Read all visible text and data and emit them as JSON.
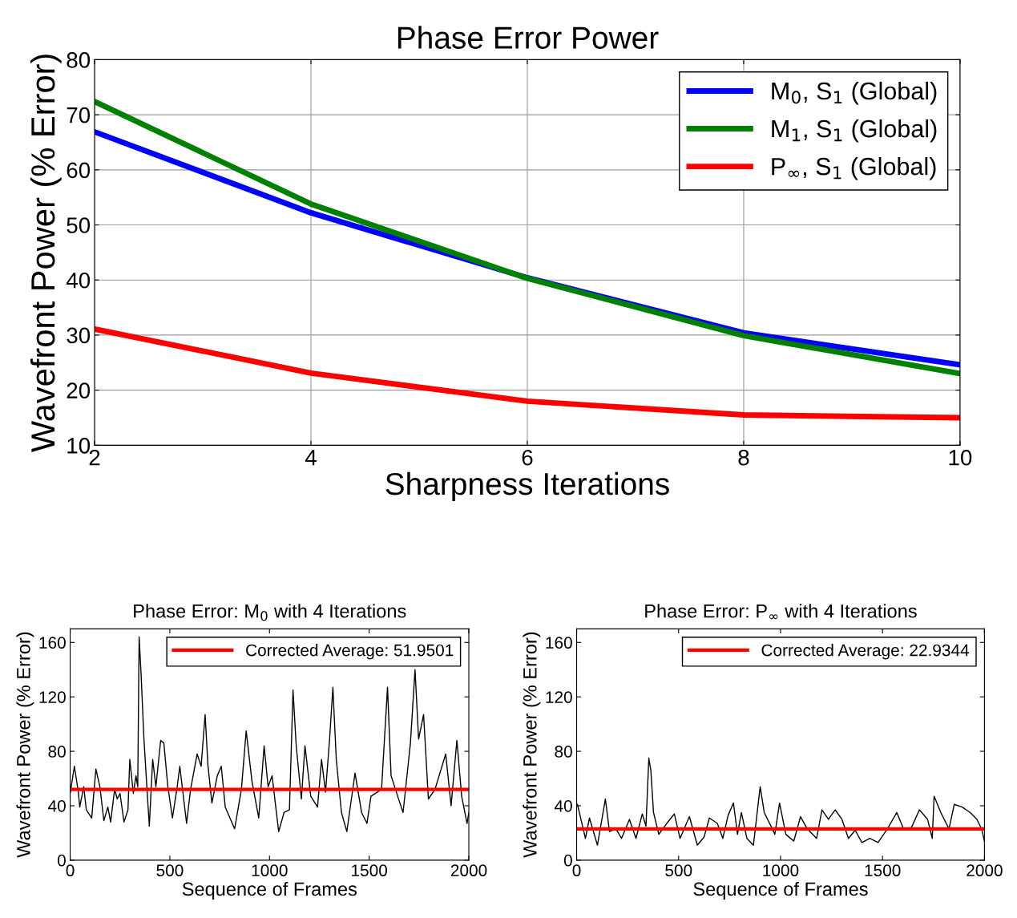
{
  "chart_data": [
    {
      "type": "line",
      "title": "Phase Error Power",
      "xlabel": "Sharpness Iterations",
      "ylabel": "Wavefront Power (% Error)",
      "x": [
        2,
        4,
        6,
        8,
        10
      ],
      "xlim": [
        2,
        10
      ],
      "xticks": [
        2,
        4,
        6,
        8,
        10
      ],
      "ylim": [
        10,
        80
      ],
      "yticks": [
        10,
        20,
        30,
        40,
        50,
        60,
        70,
        80
      ],
      "grid": true,
      "legend": "top right",
      "series": [
        {
          "name": "M$_{0}$, S$_{1}$ (Global)",
          "color": "#0000ff",
          "values": [
            66.9,
            52.2,
            40.4,
            30.4,
            24.6
          ]
        },
        {
          "name": "M$_{1}$, S$_{1}$ (Global)",
          "color": "#008000",
          "values": [
            72.4,
            53.8,
            40.3,
            29.9,
            23.0
          ]
        },
        {
          "name": "P$_{∞}$, S$_{1}$ (Global)",
          "color": "#ff0000",
          "values": [
            31.1,
            23.1,
            18.0,
            15.5,
            15.0
          ]
        }
      ]
    },
    {
      "type": "line",
      "title": "Phase Error: M$_{0}$ with 4 Iterations",
      "xlabel": "Sequence of Frames",
      "ylabel": "Wavefront Power (% Error)",
      "xlim": [
        0,
        2000
      ],
      "xticks": [
        0,
        500,
        1000,
        1500,
        2000
      ],
      "ylim": [
        0,
        170
      ],
      "yticks": [
        0,
        40,
        80,
        120,
        160
      ],
      "grid": false,
      "legend": "top right",
      "ref_lines": [
        {
          "axis": "y",
          "value": 51.9501,
          "label": "Corrected Average: 51.9501",
          "color": "#ff0000"
        }
      ],
      "series": [
        {
          "color": "#000000",
          "x": [
            1,
            21,
            41,
            48,
            68,
            81,
            108,
            129,
            149,
            169,
            189,
            203,
            223,
            236,
            250,
            270,
            290,
            299,
            317,
            330,
            339,
            346,
            356,
            370,
            397,
            414,
            430,
            454,
            470,
            490,
            513,
            537,
            550,
            584,
            604,
            637,
            657,
            677,
            691,
            711,
            738,
            758,
            778,
            825,
            859,
            883,
            912,
            946,
            973,
            993,
            1013,
            1046,
            1073,
            1100,
            1118,
            1134,
            1160,
            1178,
            1207,
            1241,
            1261,
            1281,
            1301,
            1318,
            1335,
            1361,
            1388,
            1429,
            1462,
            1489,
            1509,
            1562,
            1592,
            1610,
            1643,
            1670,
            1707,
            1730,
            1748,
            1773,
            1797,
            1830,
            1884,
            1911,
            1940,
            1964,
            1991,
            2000
          ],
          "values": [
            50,
            69,
            50,
            39,
            54,
            37,
            31,
            67,
            54,
            29,
            39,
            28,
            52,
            45,
            49,
            28,
            37,
            74,
            49,
            62,
            54,
            164,
            136,
            89,
            25,
            74,
            54,
            88,
            86,
            54,
            31,
            54,
            69,
            27,
            52,
            78,
            69,
            107,
            70,
            42,
            62,
            69,
            39,
            23,
            52,
            95,
            58,
            31,
            84,
            54,
            62,
            21,
            35,
            37,
            125,
            84,
            45,
            84,
            47,
            39,
            74,
            50,
            88,
            127,
            74,
            35,
            21,
            64,
            35,
            27,
            47,
            52,
            127,
            62,
            47,
            35,
            86,
            140,
            89,
            107,
            45,
            52,
            78,
            40,
            88,
            47,
            27,
            35
          ]
        }
      ]
    },
    {
      "type": "line",
      "title": "Phase Error: P$_{∞}$ with 4 Iterations",
      "xlabel": "Sequence of Frames",
      "ylabel": "Wavefront Power (% Error)",
      "xlim": [
        0,
        2000
      ],
      "xticks": [
        0,
        500,
        1000,
        1500,
        2000
      ],
      "ylim": [
        0,
        170
      ],
      "yticks": [
        0,
        40,
        80,
        120,
        160
      ],
      "grid": false,
      "legend": "top right",
      "ref_lines": [
        {
          "axis": "y",
          "value": 22.9344,
          "label": "Corrected Average: 22.9344",
          "color": "#ff0000"
        }
      ],
      "series": [
        {
          "color": "#000000",
          "x": [
            4,
            43,
            63,
            102,
            141,
            161,
            193,
            220,
            259,
            291,
            322,
            340,
            354,
            364,
            377,
            403,
            442,
            479,
            507,
            553,
            592,
            625,
            651,
            690,
            717,
            743,
            769,
            789,
            808,
            835,
            867,
            900,
            920,
            953,
            972,
            995,
            1026,
            1065,
            1098,
            1131,
            1177,
            1203,
            1235,
            1268,
            1301,
            1333,
            1366,
            1399,
            1438,
            1478,
            1524,
            1570,
            1603,
            1642,
            1681,
            1721,
            1744,
            1753,
            1786,
            1826,
            1852,
            1891,
            1930,
            1963,
            1986,
            2000
          ],
          "values": [
            41,
            16,
            31,
            11,
            45,
            21,
            23,
            16,
            30,
            16,
            34,
            25,
            75,
            66,
            35,
            19,
            27,
            34,
            16,
            32,
            11,
            17,
            31,
            27,
            16,
            33,
            42,
            19,
            35,
            16,
            11,
            54,
            35,
            25,
            19,
            42,
            19,
            14,
            32,
            23,
            16,
            37,
            30,
            37,
            30,
            16,
            22,
            13,
            16,
            13,
            23,
            35,
            23,
            24,
            37,
            30,
            16,
            47,
            35,
            23,
            41,
            39,
            35,
            30,
            23,
            14
          ]
        }
      ]
    }
  ]
}
